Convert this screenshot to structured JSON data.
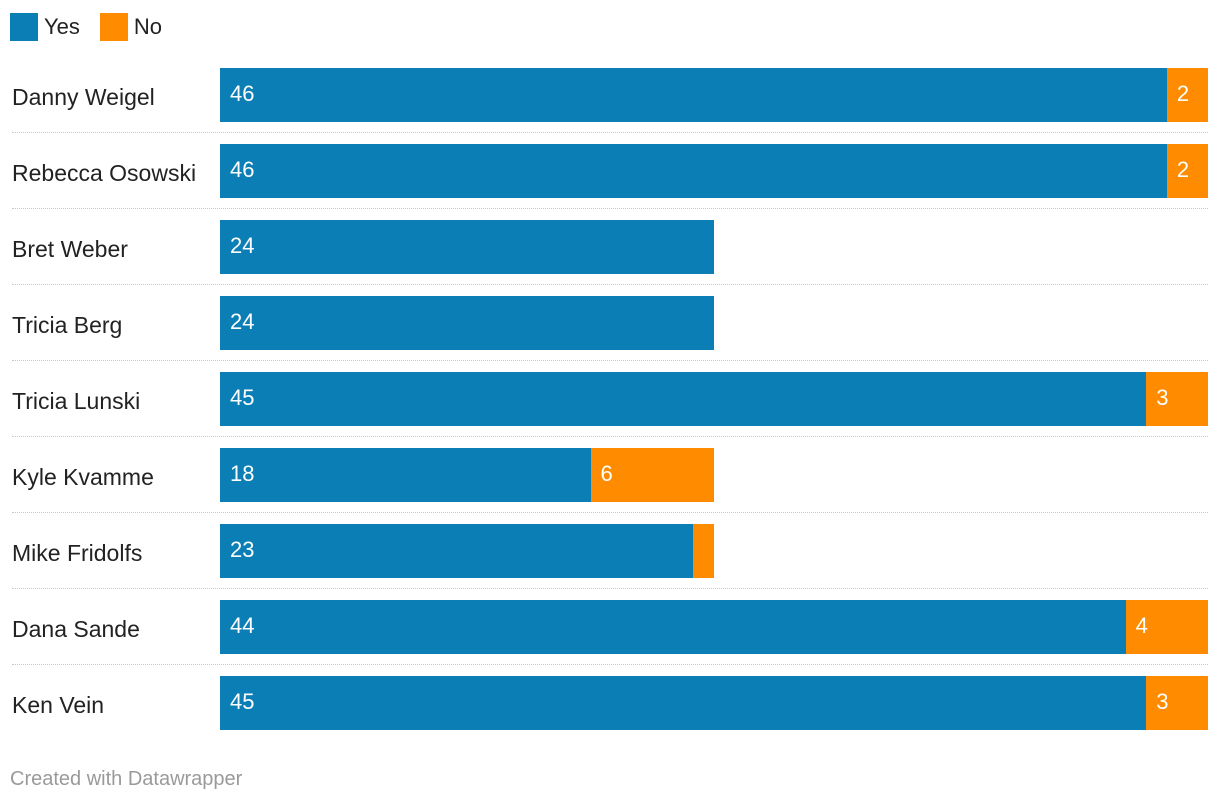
{
  "chart_data": {
    "type": "bar",
    "orientation": "horizontal",
    "stacked": true,
    "categories": [
      "Danny Weigel",
      "Rebecca Osowski",
      "Bret Weber",
      "Tricia Berg",
      "Tricia Lunski",
      "Kyle Kvamme",
      "Mike Fridolfs",
      "Dana Sande",
      "Ken Vein"
    ],
    "series": [
      {
        "name": "Yes",
        "color": "#0a7eb5",
        "values": [
          46,
          46,
          24,
          24,
          45,
          18,
          23,
          44,
          45
        ],
        "labels": [
          "46",
          "46",
          "24",
          "24",
          "45",
          "18",
          "23",
          "44",
          "45"
        ]
      },
      {
        "name": "No",
        "color": "#ff8c00",
        "values": [
          2,
          2,
          0,
          0,
          3,
          6,
          1,
          4,
          3
        ],
        "labels": [
          "2",
          "2",
          "",
          "",
          "3",
          "6",
          "",
          "4",
          "3"
        ]
      }
    ],
    "xlim": [
      0,
      48
    ],
    "legend": {
      "position": "top-left"
    },
    "grid": false
  },
  "footer": {
    "credit": "Created with Datawrapper"
  }
}
